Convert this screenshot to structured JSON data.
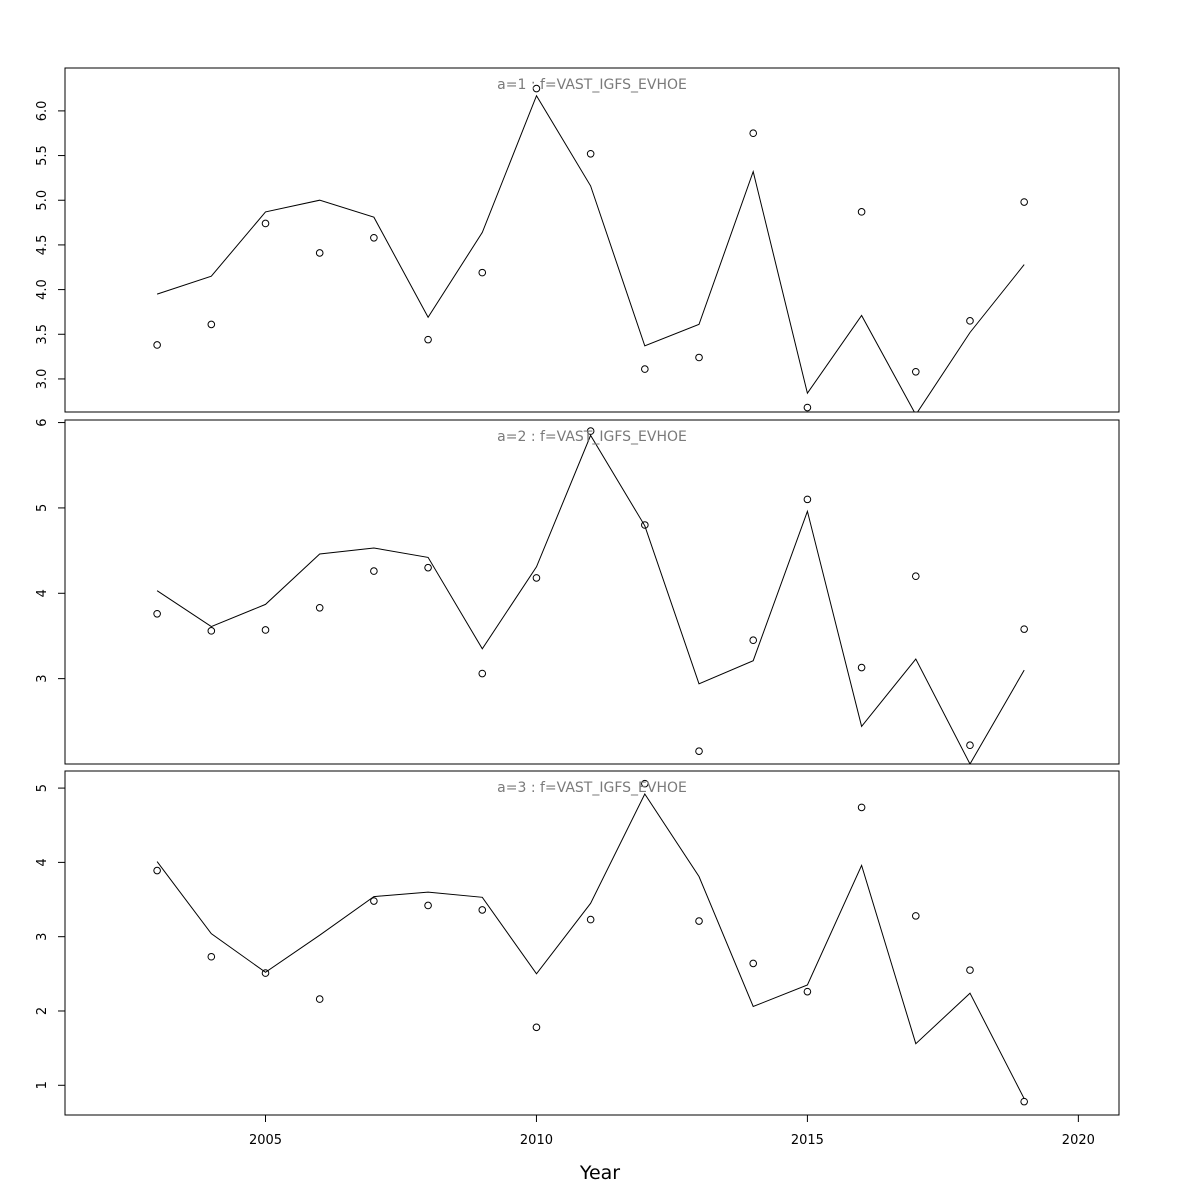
{
  "chart_data": {
    "type": "line",
    "xlabel": "Year",
    "x_ticks": [
      2005,
      2010,
      2015,
      2020
    ],
    "xlim": [
      2001.3,
      2020.75
    ],
    "panels": [
      {
        "title": "a=1  :  f=VAST_IGFS_EVHOE",
        "ylim": [
          2.63,
          6.48
        ],
        "y_ticks": [
          3.0,
          3.5,
          4.0,
          4.5,
          5.0,
          5.5,
          6.0
        ],
        "y_tick_labels": [
          "3.0",
          "3.5",
          "4.0",
          "4.5",
          "5.0",
          "5.5",
          "6.0"
        ],
        "x": [
          2003,
          2004,
          2005,
          2006,
          2007,
          2008,
          2009,
          2010,
          2011,
          2012,
          2013,
          2014,
          2015,
          2016,
          2017,
          2018,
          2019
        ],
        "fitted": [
          3.95,
          4.15,
          4.87,
          5.0,
          4.81,
          3.69,
          4.64,
          6.17,
          5.16,
          3.37,
          3.61,
          5.32,
          2.84,
          3.71,
          2.6,
          3.52,
          4.28
        ],
        "observed": [
          3.38,
          3.61,
          4.74,
          4.41,
          4.58,
          3.44,
          4.19,
          6.25,
          5.52,
          3.11,
          3.24,
          5.75,
          2.68,
          4.87,
          3.08,
          3.65,
          4.98
        ]
      },
      {
        "title": "a=2  :  f=VAST_IGFS_EVHOE",
        "ylim": [
          2.0,
          6.03
        ],
        "y_ticks": [
          3,
          4,
          5,
          6
        ],
        "y_tick_labels": [
          "3",
          "4",
          "5",
          "6"
        ],
        "x": [
          2003,
          2004,
          2005,
          2006,
          2007,
          2008,
          2009,
          2010,
          2011,
          2012,
          2013,
          2014,
          2015,
          2016,
          2017,
          2018,
          2019
        ],
        "fitted": [
          4.03,
          3.61,
          3.87,
          4.46,
          4.53,
          4.42,
          3.35,
          4.31,
          5.85,
          4.79,
          2.94,
          3.21,
          4.96,
          2.44,
          3.23,
          2.0,
          3.1
        ],
        "observed": [
          3.76,
          3.56,
          3.57,
          3.83,
          4.26,
          4.3,
          3.06,
          4.18,
          5.9,
          4.8,
          2.15,
          3.45,
          5.1,
          3.13,
          4.2,
          2.22,
          3.58
        ]
      },
      {
        "title": "a=3  :  f=VAST_IGFS_EVHOE",
        "ylim": [
          0.6,
          5.23
        ],
        "y_ticks": [
          1,
          2,
          3,
          4,
          5
        ],
        "y_tick_labels": [
          "1",
          "2",
          "3",
          "4",
          "5"
        ],
        "x": [
          2003,
          2004,
          2005,
          2006,
          2007,
          2008,
          2009,
          2010,
          2011,
          2012,
          2013,
          2014,
          2015,
          2016,
          2017,
          2018,
          2019
        ],
        "fitted": [
          4.01,
          3.04,
          2.52,
          3.02,
          3.54,
          3.6,
          3.53,
          2.5,
          3.45,
          4.92,
          3.81,
          2.06,
          2.35,
          3.96,
          1.56,
          2.24,
          0.82
        ],
        "observed": [
          3.89,
          2.73,
          2.51,
          2.16,
          3.48,
          3.42,
          3.36,
          1.78,
          3.23,
          5.06,
          3.21,
          2.64,
          2.26,
          4.74,
          3.28,
          2.55,
          0.78
        ]
      }
    ]
  }
}
